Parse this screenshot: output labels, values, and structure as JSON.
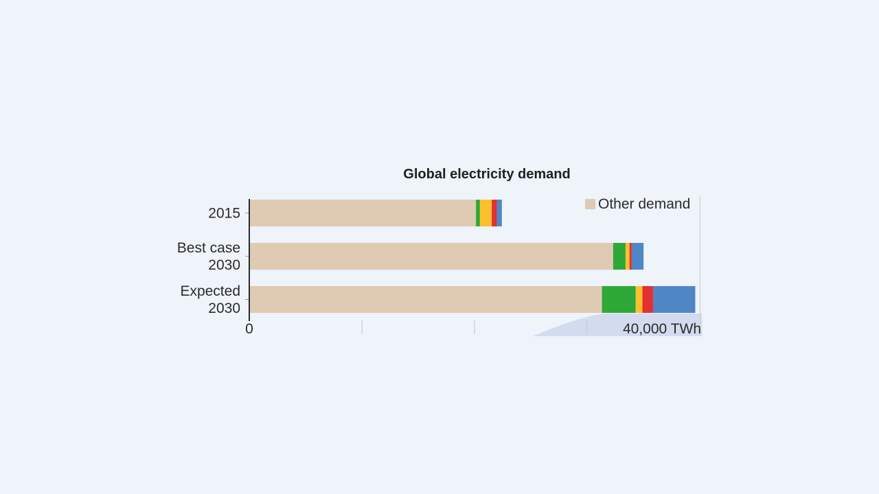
{
  "chart_data": {
    "type": "bar",
    "orientation": "horizontal",
    "stacked": true,
    "title": "Global electricity demand",
    "categories": [
      [
        "2015"
      ],
      [
        "Best case",
        "2030"
      ],
      [
        "Expected",
        "2030"
      ]
    ],
    "series": [
      {
        "name": "Other demand",
        "color": "#dfcab4",
        "values": [
          20100,
          32300,
          31300
        ]
      },
      {
        "color": "#2ea836",
        "values": [
          350,
          1100,
          3000
        ]
      },
      {
        "color": "#fbc02d",
        "values": [
          1050,
          350,
          600
        ]
      },
      {
        "color": "#e53030",
        "values": [
          450,
          200,
          950
        ]
      },
      {
        "color": "#4f86c6",
        "values": [
          450,
          1050,
          3750
        ]
      }
    ],
    "xlim": [
      0,
      40000
    ],
    "x_ticks": [
      0,
      10000,
      20000,
      30000,
      40000
    ],
    "x_tick_labels": [
      "0",
      "",
      "",
      "",
      "40,000 TWh"
    ],
    "legend": {
      "position": "top-right",
      "entries": [
        "Other demand"
      ]
    },
    "grid": false
  }
}
